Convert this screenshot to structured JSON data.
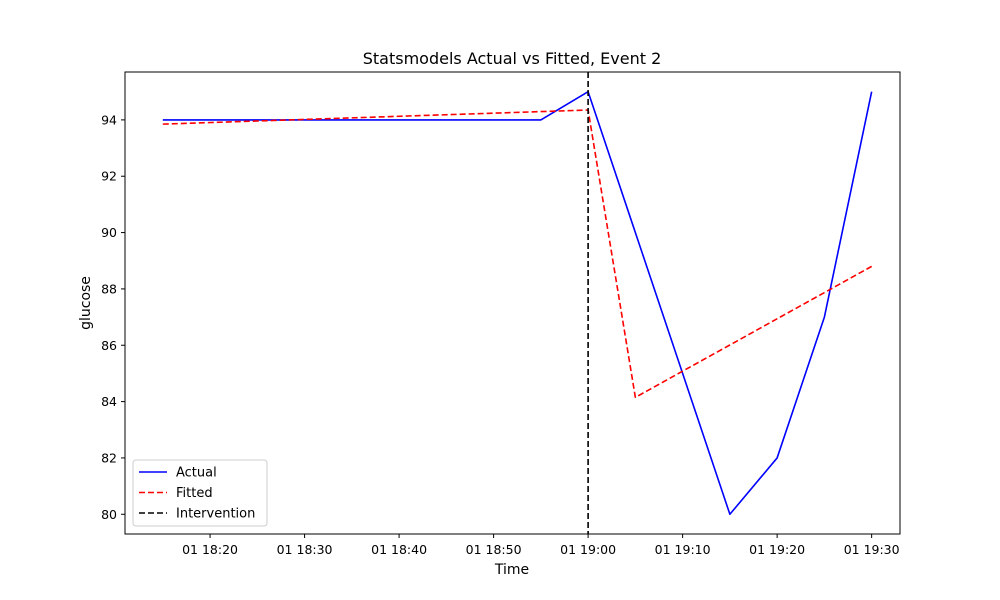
{
  "chart_data": {
    "type": "line",
    "title": "Statsmodels Actual vs Fitted, Event 2",
    "xlabel": "Time",
    "ylabel": "glucose",
    "xlim": [
      "01 18:11",
      "01 19:33"
    ],
    "ylim": [
      79.3,
      95.7
    ],
    "x_ticks": [
      "01 18:20",
      "01 18:30",
      "01 18:40",
      "01 18:50",
      "01 19:00",
      "01 19:10",
      "01 19:20",
      "01 19:30"
    ],
    "y_ticks": [
      80,
      82,
      84,
      86,
      88,
      90,
      92,
      94
    ],
    "grid": false,
    "legend_position": "lower-left",
    "series": [
      {
        "name": "Actual",
        "color": "#0000ff",
        "style": "solid",
        "points": [
          {
            "x": "01 18:15",
            "y": 94
          },
          {
            "x": "01 18:55",
            "y": 94
          },
          {
            "x": "01 19:00",
            "y": 95
          },
          {
            "x": "01 19:05",
            "y": 90
          },
          {
            "x": "01 19:10",
            "y": 85
          },
          {
            "x": "01 19:15",
            "y": 80
          },
          {
            "x": "01 19:20",
            "y": 82
          },
          {
            "x": "01 19:25",
            "y": 87
          },
          {
            "x": "01 19:30",
            "y": 95
          }
        ]
      },
      {
        "name": "Fitted",
        "color": "#ff0000",
        "style": "dashed",
        "points": [
          {
            "x": "01 18:15",
            "y": 93.85
          },
          {
            "x": "01 19:00",
            "y": 94.35
          },
          {
            "x": "01 19:05",
            "y": 84.15
          },
          {
            "x": "01 19:30",
            "y": 88.8
          }
        ]
      }
    ],
    "vlines": [
      {
        "name": "Intervention",
        "x": "01 19:00",
        "color": "#000000",
        "style": "dashed"
      }
    ]
  }
}
